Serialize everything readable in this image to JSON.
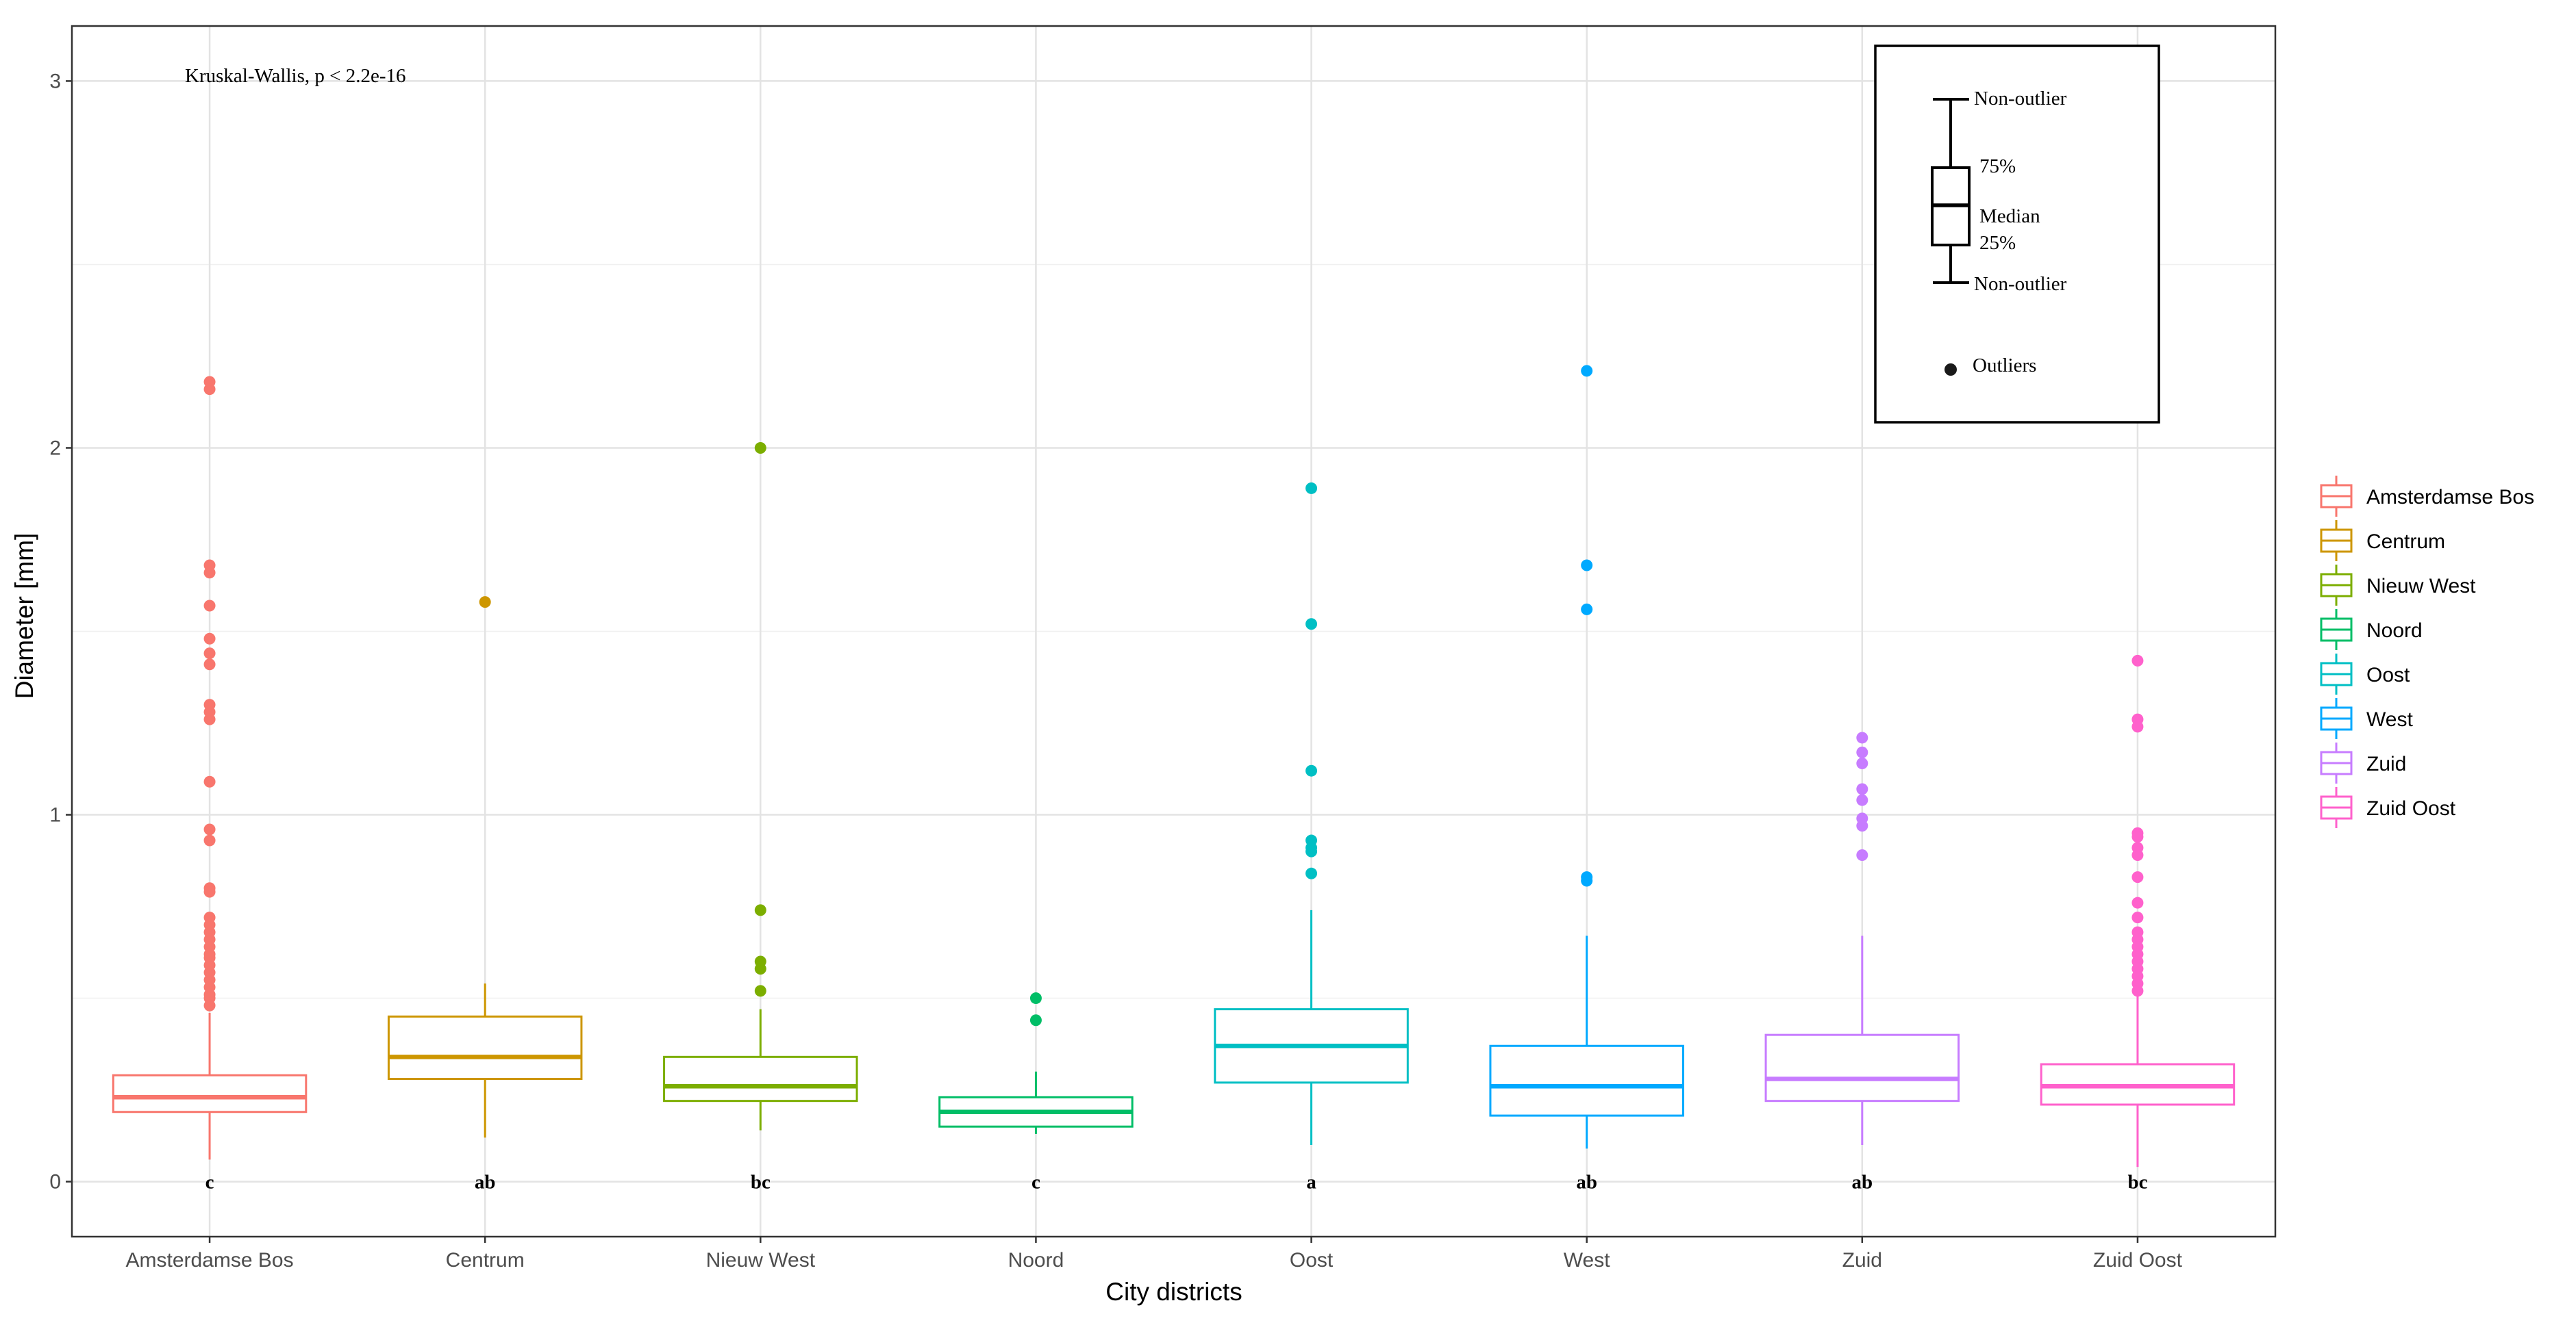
{
  "chart_data": {
    "type": "boxplot",
    "xlabel": "City districts",
    "ylabel": "Diameter [mm]",
    "ylim": [
      -0.15,
      3.15
    ],
    "yticks": [
      0,
      1,
      2,
      3
    ],
    "ytick_labels": [
      "0",
      "1",
      "2",
      "3"
    ],
    "grid": true,
    "annotation": "Kruskal-Wallis, p < 2.2e-16",
    "categories": [
      "Amsterdamse Bos",
      "Centrum",
      "Nieuw West",
      "Noord",
      "Oost",
      "West",
      "Zuid",
      "Zuid Oost"
    ],
    "series": [
      {
        "name": "Amsterdamse Bos",
        "color": "#F8766D",
        "whisker_low": 0.06,
        "q1": 0.19,
        "median": 0.23,
        "q3": 0.29,
        "whisker_high": 0.46,
        "letter": "c",
        "outliers": [
          2.18,
          2.16,
          1.68,
          1.66,
          1.57,
          1.48,
          1.44,
          1.41,
          1.3,
          1.28,
          1.26,
          1.09,
          0.96,
          0.93,
          0.8,
          0.79,
          0.72,
          0.7,
          0.68,
          0.66,
          0.64,
          0.62,
          0.61,
          0.59,
          0.57,
          0.55,
          0.53,
          0.51,
          0.5,
          0.48
        ]
      },
      {
        "name": "Centrum",
        "color": "#CD9600",
        "whisker_low": 0.12,
        "q1": 0.28,
        "median": 0.34,
        "q3": 0.45,
        "whisker_high": 0.54,
        "letter": "ab",
        "outliers": [
          1.58
        ]
      },
      {
        "name": "Nieuw West",
        "color": "#7CAE00",
        "whisker_low": 0.14,
        "q1": 0.22,
        "median": 0.26,
        "q3": 0.34,
        "whisker_high": 0.47,
        "letter": "bc",
        "outliers": [
          2.0,
          0.74,
          0.6,
          0.58,
          0.52
        ]
      },
      {
        "name": "Noord",
        "color": "#00BE67",
        "whisker_low": 0.13,
        "q1": 0.15,
        "median": 0.19,
        "q3": 0.23,
        "whisker_high": 0.3,
        "letter": "c",
        "outliers": [
          0.5,
          0.44
        ]
      },
      {
        "name": "Oost",
        "color": "#00BFC4",
        "whisker_low": 0.1,
        "q1": 0.27,
        "median": 0.37,
        "q3": 0.47,
        "whisker_high": 0.74,
        "letter": "a",
        "outliers": [
          1.89,
          1.52,
          1.12,
          0.93,
          0.91,
          0.9,
          0.84
        ]
      },
      {
        "name": "West",
        "color": "#00A9FF",
        "whisker_low": 0.09,
        "q1": 0.18,
        "median": 0.26,
        "q3": 0.37,
        "whisker_high": 0.67,
        "letter": "ab",
        "outliers": [
          2.21,
          1.68,
          1.56,
          0.83,
          0.82
        ]
      },
      {
        "name": "Zuid",
        "color": "#C77CFF",
        "whisker_low": 0.1,
        "q1": 0.22,
        "median": 0.28,
        "q3": 0.4,
        "whisker_high": 0.67,
        "letter": "ab",
        "outliers": [
          1.21,
          1.17,
          1.14,
          1.07,
          1.04,
          0.99,
          0.97,
          0.89
        ]
      },
      {
        "name": "Zuid Oost",
        "color": "#FF61CC",
        "whisker_low": 0.04,
        "q1": 0.21,
        "median": 0.26,
        "q3": 0.32,
        "whisker_high": 0.51,
        "letter": "bc",
        "outliers": [
          1.42,
          1.26,
          1.24,
          0.95,
          0.94,
          0.91,
          0.89,
          0.83,
          0.76,
          0.72,
          0.68,
          0.66,
          0.64,
          0.62,
          0.6,
          0.58,
          0.56,
          0.54,
          0.52
        ]
      }
    ],
    "legend": {
      "position": "right",
      "items": [
        "Amsterdamse Bos",
        "Centrum",
        "Nieuw West",
        "Noord",
        "Oost",
        "West",
        "Zuid",
        "Zuid Oost"
      ]
    },
    "key_inset": {
      "position": "top-right",
      "labels": {
        "top": "Non-outlier",
        "q3": "75%",
        "median": "Median",
        "q1": "25%",
        "bottom": "Non-outlier",
        "outliers": "Outliers"
      }
    }
  }
}
